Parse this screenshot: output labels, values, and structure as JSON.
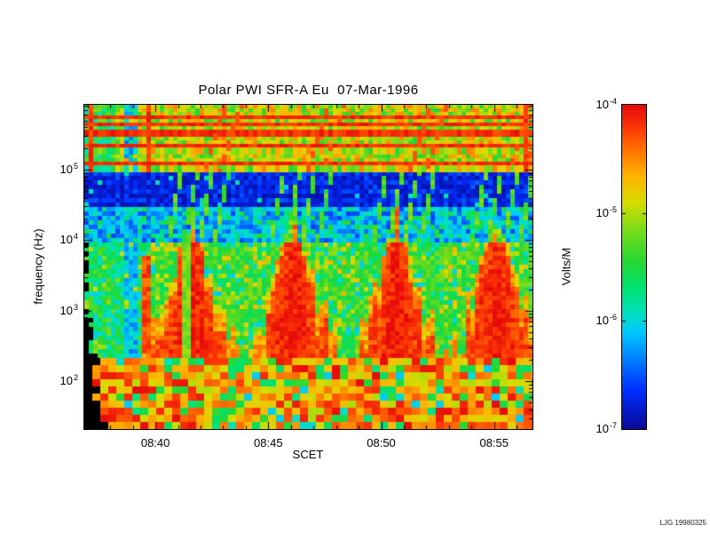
{
  "figure": {
    "credit": "LJG 19980325"
  },
  "chart_data": {
    "type": "heatmap",
    "title": "Polar PWI SFR-A Eu  07-Mar-1996",
    "xlabel": "SCET",
    "ylabel": "frequency (Hz)",
    "x_scale": "time",
    "y_scale": "log",
    "grid": false,
    "x_ticks": [
      {
        "label": "08:40",
        "minute": 40
      },
      {
        "label": "08:45",
        "minute": 45
      },
      {
        "label": "08:50",
        "minute": 50
      },
      {
        "label": "08:55",
        "minute": 55
      }
    ],
    "x_minor_tick_every_minutes": 1,
    "x_range_minutes": [
      36.85,
      56.7
    ],
    "y_ticks": [
      {
        "base": "10",
        "exp": "5",
        "log10": 5
      },
      {
        "base": "10",
        "exp": "4",
        "log10": 4
      },
      {
        "base": "10",
        "exp": "3",
        "log10": 3
      },
      {
        "base": "10",
        "exp": "2",
        "log10": 2
      }
    ],
    "y_range_log10_hz": [
      1.32,
      5.92
    ],
    "colorbar": {
      "label": "Volts/M",
      "scale": "log",
      "range": [
        1e-07,
        0.0001
      ],
      "colormap": "rainbow",
      "ticks": [
        {
          "base": "10",
          "exp": "-4"
        },
        {
          "base": "10",
          "exp": "-5"
        },
        {
          "base": "10",
          "exp": "-6"
        },
        {
          "base": "10",
          "exp": "-7"
        }
      ]
    },
    "features": {
      "burst_times_minutes": [
        41.6,
        46.15,
        50.7,
        55.1
      ],
      "burst_freq_range_hz": [
        200,
        10000
      ],
      "emission_line_log10_hz": [
        5.74,
        5.63,
        5.52,
        5.35,
        5.1
      ],
      "bands": [
        {
          "freq_hz": [
            100000,
            800000
          ],
          "appearance": "yellow-green continuum with narrow red horizontal emission lines"
        },
        {
          "freq_hz": [
            30000,
            100000
          ],
          "appearance": "dark blue low-intensity band with dashed texture"
        },
        {
          "freq_hz": [
            10000,
            30000
          ],
          "appearance": "blue with rising green diagonal streaks"
        },
        {
          "freq_hz": [
            200,
            10000
          ],
          "appearance": "green background with intense red broadband bursts recurring every 4-5 min"
        },
        {
          "freq_hz": [
            20,
            200
          ],
          "appearance": "coarse mottled orange-red"
        }
      ]
    }
  }
}
